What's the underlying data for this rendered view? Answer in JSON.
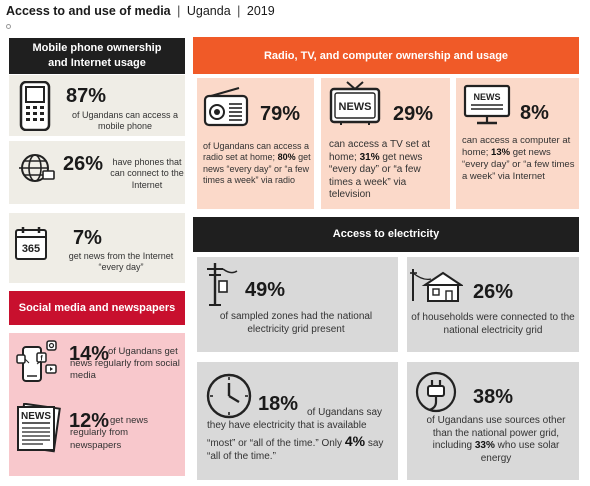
{
  "page": {
    "title_bold": "Access to and use of media",
    "sep1": "|",
    "country": "Uganda",
    "sep2": "|",
    "year": "2019"
  },
  "mobile": {
    "header_line1": "Mobile phone ownership",
    "header_line2": "and Internet usage",
    "access": {
      "pct": "87%",
      "text": "of Ugandans can access a mobile phone",
      "icon": "mobile-phone-icon"
    },
    "internet_phones": {
      "pct": "26%",
      "text": "have phones that can connect to the Internet",
      "icon": "globe-icon"
    },
    "daily_internet": {
      "pct": "7%",
      "text": "get news from the Internet “every day”",
      "icon": "calendar-365-icon",
      "icon_text": "365"
    }
  },
  "social": {
    "header": "Social media and newspapers",
    "social_media": {
      "pct": "14%",
      "text": "of Ugandans get news regularly from social media",
      "icon": "social-media-icon"
    },
    "newspapers": {
      "pct": "12%",
      "text": "get news regularly from newspapers",
      "icon": "newspaper-icon",
      "icon_text": "NEWS"
    }
  },
  "rtc": {
    "header": "Radio, TV, and computer ownership and usage",
    "radio": {
      "pct": "79%",
      "text_a": "of Ugandans can access a radio set at home;",
      "text_b": "80%",
      "text_c": "get news “every day” or “a few times a week” via radio",
      "icon": "radio-icon"
    },
    "tv": {
      "pct": "29%",
      "text_a": "can access a TV set at home;",
      "text_b": "31%",
      "text_c": "get news “every day” or “a few times a week” via television",
      "icon": "tv-news-icon",
      "icon_text": "NEWS"
    },
    "computer": {
      "pct": "8%",
      "text_a": "can access a computer at home;",
      "text_b": "13%",
      "text_c": "get news “every day” or “a few times a week” via Internet",
      "icon": "computer-news-icon",
      "icon_text": "NEWS"
    }
  },
  "electricity": {
    "header": "Access to electricity",
    "grid_zones": {
      "pct": "49%",
      "text": "of sampled zones had the national electricity grid present",
      "icon": "power-pole-icon"
    },
    "households": {
      "pct": "26%",
      "text": "of households were connected to the national electricity grid",
      "icon": "house-icon"
    },
    "availability": {
      "pct": "18%",
      "text_a": "of Ugandans say they have electricity that is available “most” or “all of the time.” Only",
      "text_b": "4%",
      "text_c": "say “all of the time.”",
      "icon": "clock-icon"
    },
    "other_sources": {
      "pct": "38%",
      "text_a": "of Ugandans use sources other than the national power grid, including",
      "text_b": "33%",
      "text_c": "who use solar energy",
      "icon": "plug-icon"
    }
  },
  "colors": {
    "orange": "#f05a28",
    "black": "#1f1f1f",
    "red": "#c8102e",
    "beige": "#efede6",
    "peach": "#fbd9c9",
    "grey": "#d9d9d9",
    "pink": "#f8c8cc"
  }
}
